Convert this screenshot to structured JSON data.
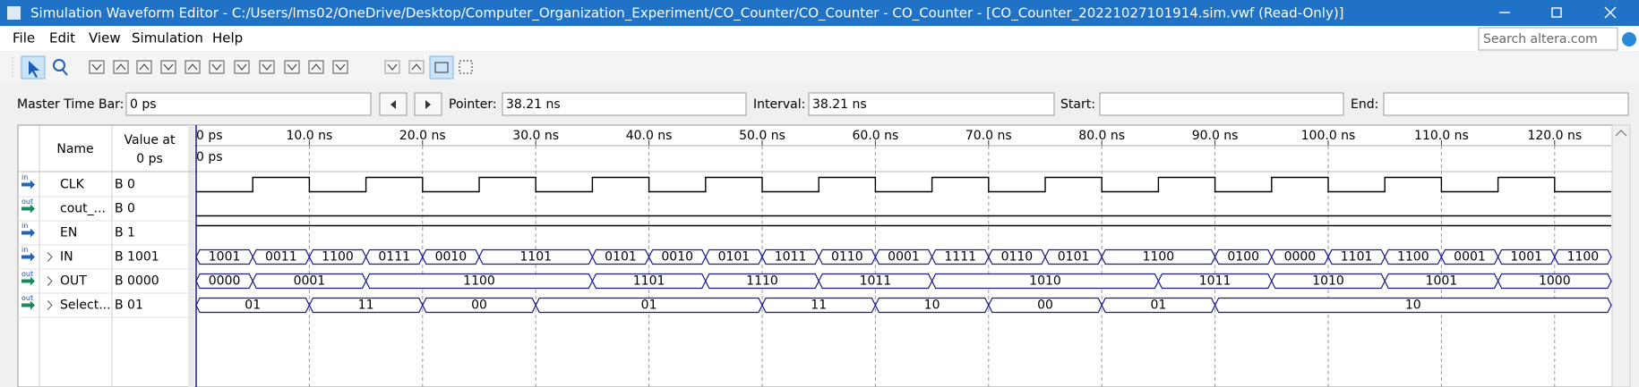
{
  "window": {
    "title": "Simulation Waveform Editor - C:/Users/lms02/OneDrive/Desktop/Computer_Organization_Experiment/CO_Counter/CO_Counter - CO_Counter - [CO_Counter_20221027101914.sim.vwf (Read-Only)]"
  },
  "menu": [
    "File",
    "Edit",
    "View",
    "Simulation",
    "Help"
  ],
  "search_placeholder": "Search altera.com",
  "timebar": {
    "master_label": "Master Time Bar:",
    "master_value": "0 ps",
    "pointer_label": "Pointer:",
    "pointer_value": "38.21 ns",
    "interval_label": "Interval:",
    "interval_value": "38.21 ns",
    "start_label": "Start:",
    "end_label": "End:"
  },
  "columns": {
    "name": "Name",
    "value_line1": "Value at",
    "value_line2": "0 ps"
  },
  "waveform": {
    "xlim": [
      0,
      125
    ],
    "xticks": [
      {
        "value": 0,
        "label": "0 ps"
      },
      {
        "value": 10,
        "label": "10.0 ns"
      },
      {
        "value": 20,
        "label": "20.0 ns"
      },
      {
        "value": 30,
        "label": "30.0 ns"
      },
      {
        "value": 40,
        "label": "40.0 ns"
      },
      {
        "value": 50,
        "label": "50.0 ns"
      },
      {
        "value": 60,
        "label": "60.0 ns"
      },
      {
        "value": 70,
        "label": "70.0 ns"
      },
      {
        "value": 80,
        "label": "80.0 ns"
      },
      {
        "value": 90,
        "label": "90.0 ns"
      },
      {
        "value": 100,
        "label": "100.0 ns"
      },
      {
        "value": 110,
        "label": "110.0 ns"
      },
      {
        "value": 120,
        "label": "120.0 ns"
      }
    ],
    "cursor_label": "0 ps",
    "signals": [
      {
        "dir": "in",
        "name": "CLK",
        "value": "B 0",
        "kind": "clock",
        "level": 0,
        "edges": [
          5,
          10,
          15,
          20,
          25,
          30,
          35,
          40,
          45,
          50,
          55,
          60,
          65,
          70,
          75,
          80,
          85,
          90,
          95,
          100,
          105,
          110,
          115,
          120
        ]
      },
      {
        "dir": "out",
        "name": "cout_...",
        "value": "B 0",
        "kind": "bit",
        "level": 0
      },
      {
        "dir": "in",
        "name": "EN",
        "value": "B 1",
        "kind": "bit",
        "level": 1
      },
      {
        "dir": "in",
        "name": "IN",
        "value": "B 1001",
        "kind": "bus",
        "edges": [
          0,
          5,
          10,
          15,
          20,
          25,
          35,
          40,
          45,
          50,
          55,
          60,
          65,
          70,
          75,
          80,
          90,
          95,
          100,
          105,
          110,
          115,
          120,
          125
        ],
        "labels": [
          "1001",
          "0011",
          "1100",
          "0111",
          "0010",
          "1101",
          "0101",
          "0010",
          "0101",
          "1011",
          "0110",
          "0001",
          "1111",
          "0110",
          "0101",
          "1100",
          "0100",
          "0000",
          "1101",
          "1100",
          "0001",
          "1001",
          "1100"
        ]
      },
      {
        "dir": "out",
        "name": "OUT",
        "value": "B 0000",
        "kind": "bus",
        "edges": [
          0,
          5,
          15,
          35,
          45,
          55,
          65,
          85,
          95,
          105,
          115,
          125
        ],
        "labels": [
          "0000",
          "0001",
          "1100",
          "1101",
          "1110",
          "1011",
          "1010",
          "1011",
          "1010",
          "1001",
          "1000"
        ]
      },
      {
        "dir": "out",
        "name": "Select...",
        "value": "B 01",
        "kind": "bus",
        "edges": [
          0,
          10,
          20,
          30,
          50,
          60,
          70,
          80,
          90,
          125
        ],
        "labels": [
          "01",
          "11",
          "00",
          "01",
          "11",
          "10",
          "00",
          "01",
          "10"
        ]
      }
    ]
  }
}
